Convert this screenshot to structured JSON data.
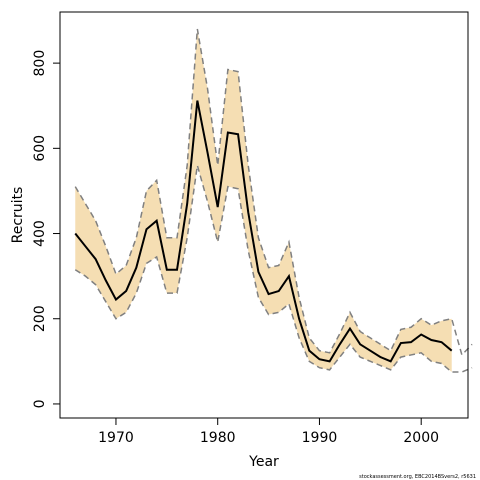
{
  "chart_data": {
    "type": "line",
    "xlabel": "Year",
    "ylabel": "Recruits",
    "footnote": "stockassessment.org, EBC2014BSvers2, r5631",
    "x": [
      1966,
      1967,
      1968,
      1969,
      1970,
      1971,
      1972,
      1973,
      1974,
      1975,
      1976,
      1977,
      1978,
      1979,
      1980,
      1981,
      1982,
      1983,
      1984,
      1985,
      1986,
      1987,
      1988,
      1989,
      1990,
      1991,
      1992,
      1993,
      1994,
      1995,
      1996,
      1997,
      1998,
      1999,
      2000,
      2001,
      2002,
      2003,
      2004,
      2005
    ],
    "series": [
      {
        "color": "#000000",
        "values": [
          400,
          370,
          340,
          290,
          245,
          265,
          320,
          410,
          430,
          315,
          315,
          470,
          712,
          590,
          462,
          637,
          633,
          450,
          310,
          258,
          265,
          300,
          200,
          125,
          105,
          100,
          140,
          177,
          140,
          125,
          110,
          100,
          143,
          145,
          163,
          150,
          145,
          125,
          null,
          null
        ]
      },
      {
        "color": "#808080",
        "values": [
          510,
          470,
          430,
          370,
          305,
          325,
          390,
          500,
          525,
          390,
          390,
          560,
          880,
          740,
          560,
          785,
          780,
          560,
          390,
          320,
          325,
          380,
          250,
          155,
          125,
          120,
          165,
          215,
          170,
          155,
          140,
          125,
          175,
          180,
          200,
          185,
          195,
          200,
          115,
          140
        ]
      },
      {
        "color": "#808080",
        "values": [
          315,
          300,
          280,
          240,
          200,
          215,
          260,
          330,
          345,
          260,
          260,
          390,
          560,
          475,
          380,
          510,
          505,
          360,
          250,
          210,
          215,
          235,
          155,
          100,
          85,
          80,
          110,
          140,
          110,
          100,
          90,
          80,
          110,
          115,
          120,
          100,
          95,
          75,
          75,
          85
        ]
      }
    ],
    "band_color": "#f5deb3",
    "xlim": [
      1964.5,
      2004.6
    ],
    "ylim": [
      -33,
      920
    ],
    "xticks": [
      1970,
      1980,
      1990,
      2000
    ],
    "yticks": [
      0,
      200,
      400,
      600,
      800
    ]
  }
}
